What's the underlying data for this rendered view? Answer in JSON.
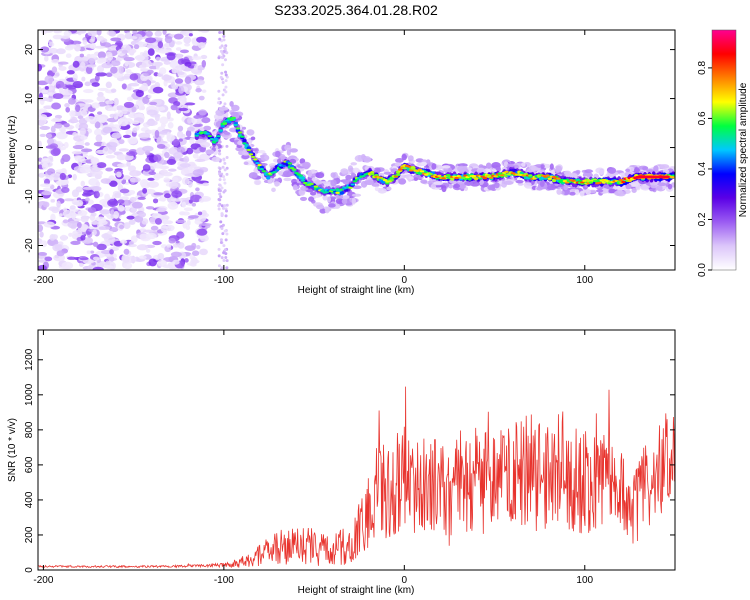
{
  "chart_data": [
    {
      "type": "heatmap",
      "title": "S233.2025.364.01.28.R02",
      "xlabel": "Height of straight line (km)",
      "ylabel": "Frequency (Hz)",
      "xlim": [
        -203,
        150
      ],
      "ylim": [
        -25,
        24
      ],
      "xticks": [
        -200,
        -100,
        0,
        100
      ],
      "yticks": [
        -20,
        -10,
        0,
        10,
        20
      ],
      "colorbar": {
        "label": "Normalized spectral amplitude",
        "range": [
          0.0,
          0.95
        ],
        "ticks": [
          0.0,
          0.2,
          0.4,
          0.6,
          0.8
        ],
        "colors": [
          "#ffffff",
          "#dcc6fa",
          "#9b5cf2",
          "#5a00e6",
          "#0000ff",
          "#00c8ff",
          "#00ff40",
          "#ffff00",
          "#ff8000",
          "#ff0000",
          "#ff0090"
        ]
      },
      "ridge": {
        "x": [
          -115,
          -110,
          -105,
          -100,
          -95,
          -90,
          -85,
          -80,
          -75,
          -70,
          -65,
          -60,
          -55,
          -50,
          -45,
          -40,
          -35,
          -30,
          -25,
          -20,
          -15,
          -10,
          -5,
          0,
          10,
          20,
          30,
          40,
          50,
          60,
          70,
          80,
          90,
          100,
          110,
          120,
          130,
          140,
          150
        ],
        "y": [
          2.5,
          3,
          1,
          5,
          6,
          2,
          -1,
          -4,
          -6,
          -4,
          -3,
          -5,
          -7,
          -8,
          -9,
          -9,
          -9,
          -8,
          -6,
          -5,
          -6,
          -7,
          -6,
          -4,
          -5,
          -6,
          -6,
          -6,
          -6,
          -5,
          -6,
          -6,
          -7,
          -7,
          -7,
          -7,
          -6,
          -6,
          -6
        ]
      }
    },
    {
      "type": "line",
      "xlabel": "Height of straight line (km)",
      "ylabel": "SNR (10 * v/v)",
      "xlim": [
        -203,
        150
      ],
      "ylim": [
        0,
        1370
      ],
      "xticks": [
        -200,
        -100,
        0,
        100
      ],
      "yticks": [
        0,
        200,
        400,
        600,
        800,
        1000,
        1200
      ],
      "color": "#e8342e",
      "envelope": {
        "x": [
          -203,
          -130,
          -110,
          -95,
          -85,
          -75,
          -70,
          -65,
          -60,
          -50,
          -40,
          -30,
          -25,
          -20,
          -15,
          -10,
          -5,
          0,
          10,
          20,
          30,
          40,
          50,
          60,
          70,
          80,
          90,
          100,
          110,
          120,
          125,
          130,
          140,
          150
        ],
        "base": [
          20,
          20,
          25,
          30,
          60,
          100,
          120,
          130,
          140,
          130,
          120,
          150,
          220,
          330,
          400,
          430,
          460,
          480,
          500,
          470,
          480,
          520,
          500,
          530,
          560,
          520,
          480,
          500,
          520,
          490,
          300,
          400,
          560,
          700
        ],
        "spread": [
          10,
          12,
          15,
          30,
          100,
          150,
          250,
          230,
          200,
          220,
          180,
          250,
          320,
          450,
          550,
          600,
          650,
          620,
          600,
          650,
          700,
          650,
          600,
          600,
          700,
          600,
          550,
          600,
          550,
          500,
          350,
          500,
          550,
          600
        ]
      }
    }
  ]
}
